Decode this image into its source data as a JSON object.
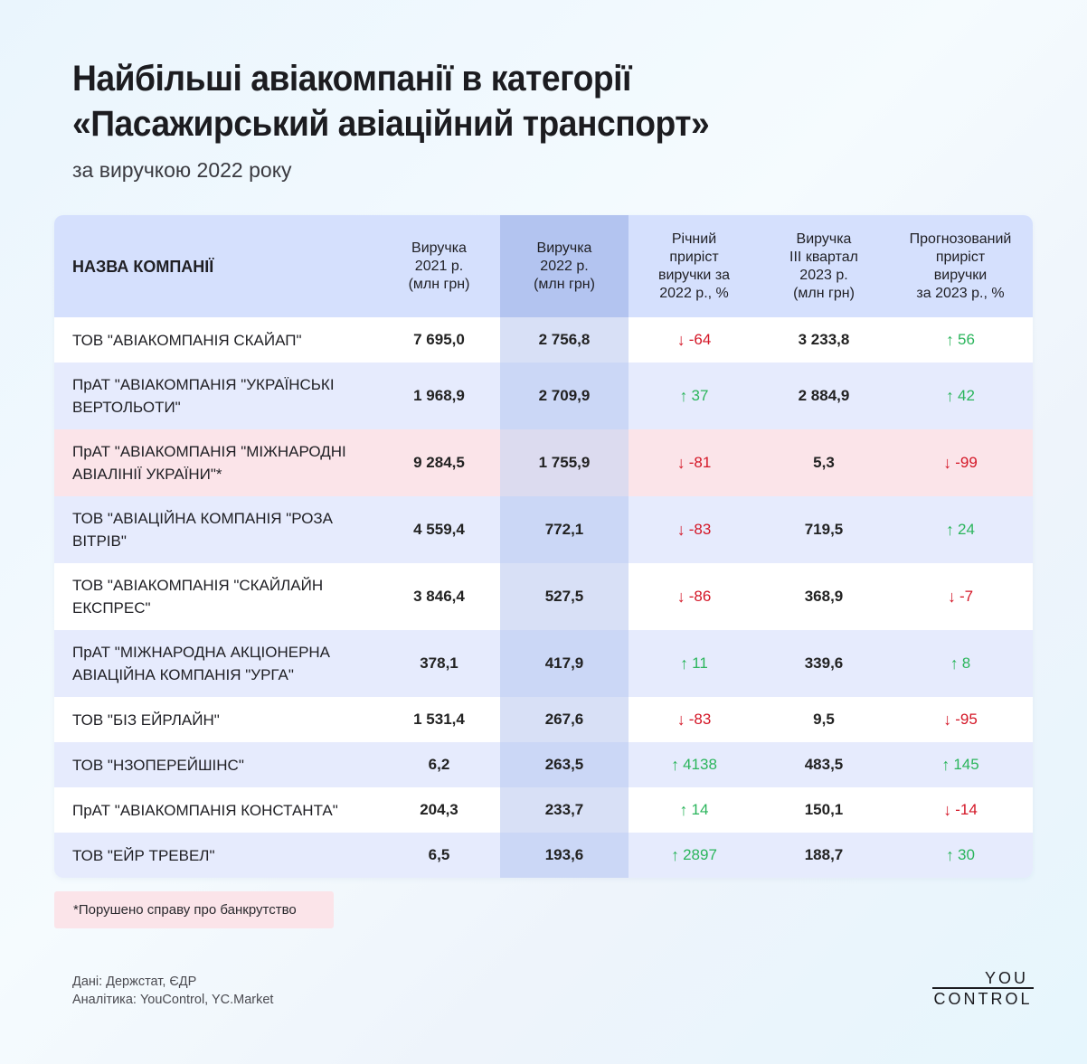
{
  "header": {
    "title_line1": "Найбільші авіакомпанії в категорії",
    "title_line2": "«Пасажирський авіаційний транспорт»",
    "subtitle": "за виручкою 2022 року"
  },
  "colors": {
    "header_bg": "#d5e0fd",
    "highlight_column": "#b3c4f0",
    "row_blue": "#e6ebfd",
    "row_pink": "#fbe4e9",
    "up": "#2bb55c",
    "down": "#d41626"
  },
  "table": {
    "columns": [
      "НАЗВА КОМПАНІЇ",
      "Виручка 2021 р. (млн грн)",
      "Виручка 2022 р. (млн грн)",
      "Річний приріст виручки за 2022 р., %",
      "Виручка III квартал 2023 р. (млн грн)",
      "Прогнозований приріст виручки за 2023 р., %"
    ],
    "col_lines": {
      "c1": [
        "Виручка",
        "2021 р.",
        "(млн грн)"
      ],
      "c2": [
        "Виручка",
        "2022 р.",
        "(млн грн)"
      ],
      "c3": [
        "Річний",
        "приріст",
        "виручки за",
        "2022 р., %"
      ],
      "c4": [
        "Виручка",
        "III квартал",
        "2023 р.",
        "(млн грн)"
      ],
      "c5": [
        "Прогнозований",
        "приріст",
        "виручки",
        "за 2023 р., %"
      ]
    },
    "rows": [
      {
        "name": [
          "ТОВ \"АВІАКОМПАНІЯ СКАЙАП\""
        ],
        "rev2021": "7 695,0",
        "rev2022": "2 756,8",
        "growth2022": "-64",
        "growth2022_dir": "down",
        "rev_q3_2023": "3 233,8",
        "forecast2023": "56",
        "forecast2023_dir": "up",
        "style": "white"
      },
      {
        "name": [
          "ПрАТ \"АВІАКОМПАНІЯ \"УКРАЇНСЬКІ",
          "ВЕРТОЛЬОТИ\""
        ],
        "rev2021": "1 968,9",
        "rev2022": "2 709,9",
        "growth2022": "37",
        "growth2022_dir": "up",
        "rev_q3_2023": "2 884,9",
        "forecast2023": "42",
        "forecast2023_dir": "up",
        "style": "blue"
      },
      {
        "name": [
          "ПрАТ \"АВІАКОМПАНІЯ \"МІЖНАРОДНІ",
          "АВІАЛІНІЇ УКРАЇНИ\"*"
        ],
        "rev2021": "9 284,5",
        "rev2022": "1 755,9",
        "growth2022": "-81",
        "growth2022_dir": "down",
        "rev_q3_2023": "5,3",
        "forecast2023": "-99",
        "forecast2023_dir": "down",
        "style": "pink"
      },
      {
        "name": [
          "ТОВ \"АВІАЦІЙНА КОМПАНІЯ \"РОЗА",
          "ВІТРІВ\""
        ],
        "rev2021": "4 559,4",
        "rev2022": "772,1",
        "growth2022": "-83",
        "growth2022_dir": "down",
        "rev_q3_2023": "719,5",
        "forecast2023": "24",
        "forecast2023_dir": "up",
        "style": "blue"
      },
      {
        "name": [
          "ТОВ \"АВІАКОМПАНІЯ \"СКАЙЛАЙН",
          "ЕКСПРЕС\""
        ],
        "rev2021": "3 846,4",
        "rev2022": "527,5",
        "growth2022": "-86",
        "growth2022_dir": "down",
        "rev_q3_2023": "368,9",
        "forecast2023": "-7",
        "forecast2023_dir": "down",
        "style": "white"
      },
      {
        "name": [
          "ПрАТ \"МІЖНАРОДНА АКЦІОНЕРНА",
          "АВІАЦІЙНА КОМПАНІЯ \"УРГА\""
        ],
        "rev2021": "378,1",
        "rev2022": "417,9",
        "growth2022": "11",
        "growth2022_dir": "up",
        "rev_q3_2023": "339,6",
        "forecast2023": "8",
        "forecast2023_dir": "up",
        "style": "blue"
      },
      {
        "name": [
          "ТОВ \"БІЗ ЕЙРЛАЙН\""
        ],
        "rev2021": "1 531,4",
        "rev2022": "267,6",
        "growth2022": "-83",
        "growth2022_dir": "down",
        "rev_q3_2023": "9,5",
        "forecast2023": "-95",
        "forecast2023_dir": "down",
        "style": "white"
      },
      {
        "name": [
          "ТОВ \"НЗОПЕРЕЙШІНС\""
        ],
        "rev2021": "6,2",
        "rev2022": "263,5",
        "growth2022": "4138",
        "growth2022_dir": "up",
        "rev_q3_2023": "483,5",
        "forecast2023": "145",
        "forecast2023_dir": "up",
        "style": "blue"
      },
      {
        "name": [
          "ПрАТ \"АВІАКОМПАНІЯ КОНСТАНТА\""
        ],
        "rev2021": "204,3",
        "rev2022": "233,7",
        "growth2022": "14",
        "growth2022_dir": "up",
        "rev_q3_2023": "150,1",
        "forecast2023": "-14",
        "forecast2023_dir": "down",
        "style": "white"
      },
      {
        "name": [
          "ТОВ \"ЕЙР ТРЕВЕЛ\""
        ],
        "rev2021": "6,5",
        "rev2022": "193,6",
        "growth2022": "2897",
        "growth2022_dir": "up",
        "rev_q3_2023": "188,7",
        "forecast2023": "30",
        "forecast2023_dir": "up",
        "style": "blue"
      }
    ]
  },
  "footnote": "*Порушено справу про банкрутство",
  "sources": {
    "data": "Дані: Держстат, ЄДР",
    "analytics": "Аналітика: YouControl, YC.Market"
  },
  "logo": {
    "top": "YOU",
    "bottom": "CONTROL"
  },
  "icons": {
    "up": "↑",
    "down": "↓"
  },
  "chart_data": {
    "type": "table",
    "title": "Найбільші авіакомпанії в категорії «Пасажирський авіаційний транспорт»",
    "subtitle": "за виручкою 2022 року",
    "columns": [
      "Назва компанії",
      "Виручка 2021 р. (млн грн)",
      "Виручка 2022 р. (млн грн)",
      "Річний приріст виручки за 2022 р., %",
      "Виручка III квартал 2023 р. (млн грн)",
      "Прогнозований приріст виручки за 2023 р., %"
    ],
    "categories": [
      "ТОВ \"АВІАКОМПАНІЯ СКАЙАП\"",
      "ПрАТ \"АВІАКОМПАНІЯ \"УКРАЇНСЬКІ ВЕРТОЛЬОТИ\"",
      "ПрАТ \"АВІАКОМПАНІЯ \"МІЖНАРОДНІ АВІАЛІНІЇ УКРАЇНИ\"*",
      "ТОВ \"АВІАЦІЙНА КОМПАНІЯ \"РОЗА ВІТРІВ\"",
      "ТОВ \"АВІАКОМПАНІЯ \"СКАЙЛАЙН ЕКСПРЕС\"",
      "ПрАТ \"МІЖНАРОДНА АКЦІОНЕРНА АВІАЦІЙНА КОМПАНІЯ \"УРГА\"",
      "ТОВ \"БІЗ ЕЙРЛАЙН\"",
      "ТОВ \"НЗОПЕРЕЙШІНС\"",
      "ПрАТ \"АВІАКОМПАНІЯ КОНСТАНТА\"",
      "ТОВ \"ЕЙР ТРЕВЕЛ\""
    ],
    "series": [
      {
        "name": "Виручка 2021 р. (млн грн)",
        "values": [
          7695.0,
          1968.9,
          9284.5,
          4559.4,
          3846.4,
          378.1,
          1531.4,
          6.2,
          204.3,
          6.5
        ]
      },
      {
        "name": "Виручка 2022 р. (млн грн)",
        "values": [
          2756.8,
          2709.9,
          1755.9,
          772.1,
          527.5,
          417.9,
          267.6,
          263.5,
          233.7,
          193.6
        ]
      },
      {
        "name": "Річний приріст виручки за 2022 р., %",
        "values": [
          -64,
          37,
          -81,
          -83,
          -86,
          11,
          -83,
          4138,
          14,
          2897
        ]
      },
      {
        "name": "Виручка III квартал 2023 р. (млн грн)",
        "values": [
          3233.8,
          2884.9,
          5.3,
          719.5,
          368.9,
          339.6,
          9.5,
          483.5,
          150.1,
          188.7
        ]
      },
      {
        "name": "Прогнозований приріст виручки за 2023 р., %",
        "values": [
          56,
          42,
          -99,
          24,
          -7,
          8,
          -95,
          145,
          -14,
          30
        ]
      }
    ],
    "annotations": [
      "*Порушено справу про банкрутство",
      "Дані: Держстат, ЄДР",
      "Аналітика: YouControl, YC.Market"
    ]
  }
}
